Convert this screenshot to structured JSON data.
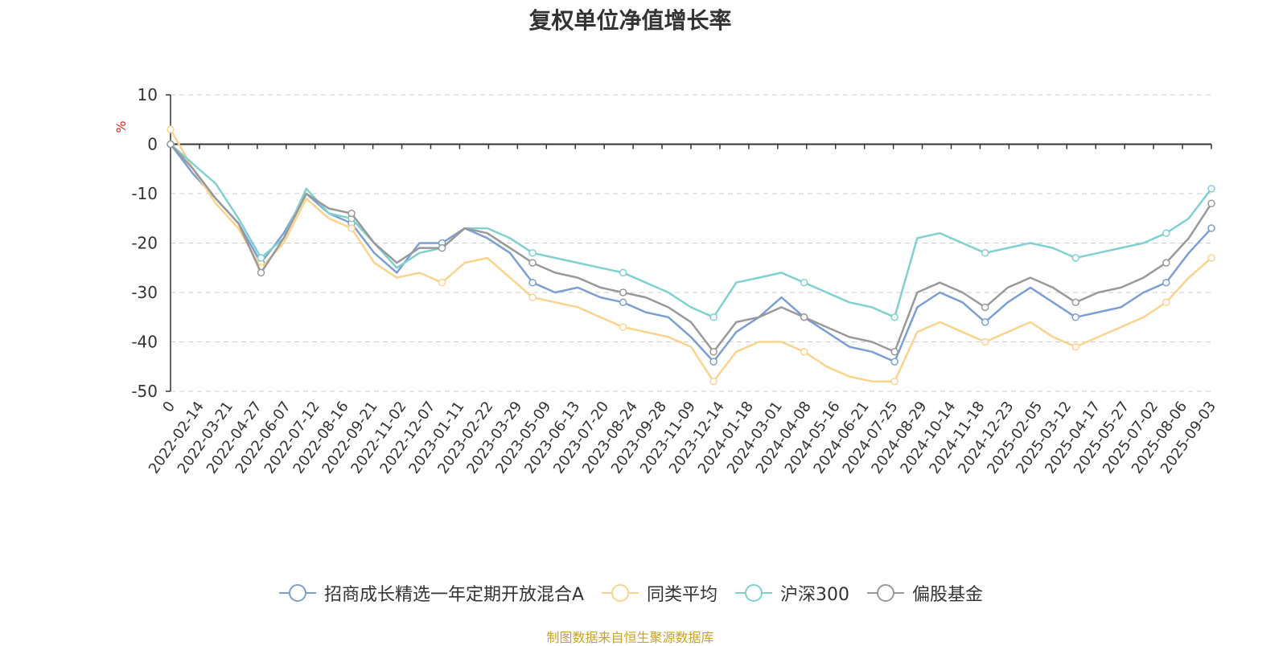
{
  "title": "复权单位净值增长率",
  "source_note": "制图数据来自恒生聚源数据库",
  "chart_data": {
    "type": "line",
    "title": "复权单位净值增长率",
    "ylabel": "%",
    "ylim": [
      -50,
      10
    ],
    "y_ticks": [
      10,
      0,
      -10,
      -20,
      -30,
      -40,
      -50
    ],
    "grid": true,
    "legend_position": "bottom",
    "x_tick_labels": [
      "0",
      "2022-02-14",
      "2022-03-21",
      "2022-04-27",
      "2022-06-07",
      "2022-07-12",
      "2022-08-16",
      "2022-09-21",
      "2022-11-02",
      "2022-12-07",
      "2023-01-11",
      "2023-02-22",
      "2023-03-29",
      "2023-05-09",
      "2023-06-13",
      "2023-07-20",
      "2023-08-24",
      "2023-09-28",
      "2023-11-09",
      "2023-12-14",
      "2024-01-18",
      "2024-03-01",
      "2024-04-08",
      "2024-05-16",
      "2024-06-21",
      "2024-07-25",
      "2024-08-29",
      "2024-10-14",
      "2024-11-18",
      "2024-12-23",
      "2025-02-05",
      "2025-03-12",
      "2025-04-17",
      "2025-05-27",
      "2025-07-02",
      "2025-08-06",
      "2025-09-03"
    ],
    "series": [
      {
        "name": "招商成长精选一年定期开放混合A",
        "color": "#7b9fd4",
        "values": [
          0,
          -6,
          -11,
          -16,
          -24,
          -18,
          -10,
          -14,
          -16,
          -22,
          -26,
          -20,
          -20,
          -17,
          -19,
          -22,
          -28,
          -30,
          -29,
          -31,
          -32,
          -34,
          -35,
          -39,
          -44,
          -38,
          -35,
          -31,
          -35,
          -38,
          -41,
          -42,
          -44,
          -33,
          -30,
          -32,
          -36,
          -32,
          -29,
          -32,
          -35,
          -34,
          -33,
          -30,
          -28,
          -22,
          -17
        ]
      },
      {
        "name": "同类平均",
        "color": "#fbd38d",
        "values": [
          3,
          -5,
          -12,
          -17,
          -25,
          -20,
          -11,
          -15,
          -17,
          -24,
          -27,
          -26,
          -28,
          -24,
          -23,
          -27,
          -31,
          -32,
          -33,
          -35,
          -37,
          -38,
          -39,
          -41,
          -48,
          -42,
          -40,
          -40,
          -42,
          -45,
          -47,
          -48,
          -48,
          -38,
          -36,
          -38,
          -40,
          -38,
          -36,
          -39,
          -41,
          -39,
          -37,
          -35,
          -32,
          -27,
          -23
        ]
      },
      {
        "name": "沪深300",
        "color": "#7fd1d0",
        "values": [
          0,
          -4,
          -8,
          -15,
          -23,
          -19,
          -9,
          -14,
          -15,
          -20,
          -25,
          -22,
          -21,
          -17,
          -17,
          -19,
          -22,
          -23,
          -24,
          -25,
          -26,
          -28,
          -30,
          -33,
          -35,
          -28,
          -27,
          -26,
          -28,
          -30,
          -32,
          -33,
          -35,
          -19,
          -18,
          -20,
          -22,
          -21,
          -20,
          -21,
          -23,
          -22,
          -21,
          -20,
          -18,
          -15,
          -9
        ]
      },
      {
        "name": "偏股基金",
        "color": "#999999",
        "values": [
          0,
          -5,
          -11,
          -16,
          -26,
          -19,
          -10,
          -13,
          -14,
          -20,
          -24,
          -21,
          -21,
          -17,
          -18,
          -21,
          -24,
          -26,
          -27,
          -29,
          -30,
          -31,
          -33,
          -36,
          -42,
          -36,
          -35,
          -33,
          -35,
          -37,
          -39,
          -40,
          -42,
          -30,
          -28,
          -30,
          -33,
          -29,
          -27,
          -29,
          -32,
          -30,
          -29,
          -27,
          -24,
          -19,
          -12
        ]
      }
    ]
  }
}
